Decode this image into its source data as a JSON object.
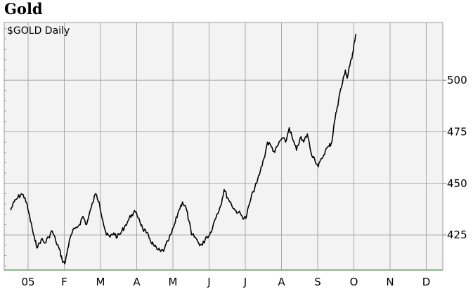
{
  "chart_data": {
    "type": "line",
    "title": "Gold",
    "subtitle": "$GOLD Daily",
    "xlabel": "",
    "ylabel": "",
    "ylim": [
      408,
      528
    ],
    "y_ticks": [
      425,
      450,
      475,
      500
    ],
    "y_axis_side": "right",
    "x_ticks": [
      "05",
      "F",
      "M",
      "A",
      "M",
      "J",
      "J",
      "A",
      "S",
      "O",
      "N",
      "D"
    ],
    "grid": true,
    "legend": "none",
    "series": [
      {
        "color": "#000000",
        "points": [
          [
            0.0,
            437
          ],
          [
            0.2,
            441
          ],
          [
            0.4,
            443
          ],
          [
            0.6,
            445
          ],
          [
            0.8,
            443
          ],
          [
            1.0,
            436
          ],
          [
            1.2,
            428
          ],
          [
            1.35,
            422
          ],
          [
            1.5,
            419
          ],
          [
            1.7,
            423
          ],
          [
            1.9,
            421
          ],
          [
            2.1,
            424
          ],
          [
            2.3,
            427
          ],
          [
            2.5,
            422
          ],
          [
            2.7,
            418
          ],
          [
            2.85,
            413
          ],
          [
            3.0,
            411
          ],
          [
            3.15,
            418
          ],
          [
            3.35,
            425
          ],
          [
            3.55,
            428
          ],
          [
            3.8,
            430
          ],
          [
            4.0,
            434
          ],
          [
            4.2,
            430
          ],
          [
            4.45,
            438
          ],
          [
            4.7,
            445
          ],
          [
            4.9,
            441
          ],
          [
            5.1,
            432
          ],
          [
            5.3,
            425
          ],
          [
            5.5,
            424
          ],
          [
            5.7,
            426
          ],
          [
            5.9,
            424
          ],
          [
            6.1,
            426
          ],
          [
            6.3,
            429
          ],
          [
            6.5,
            432
          ],
          [
            6.7,
            435
          ],
          [
            6.9,
            436
          ],
          [
            7.1,
            433
          ],
          [
            7.3,
            428
          ],
          [
            7.5,
            426
          ],
          [
            7.7,
            423
          ],
          [
            7.9,
            420
          ],
          [
            8.1,
            418
          ],
          [
            8.3,
            417
          ],
          [
            8.5,
            418
          ],
          [
            8.7,
            422
          ],
          [
            8.9,
            426
          ],
          [
            9.1,
            431
          ],
          [
            9.3,
            437
          ],
          [
            9.5,
            441
          ],
          [
            9.7,
            438
          ],
          [
            9.85,
            432
          ],
          [
            10.0,
            425
          ],
          [
            10.2,
            424
          ],
          [
            10.4,
            421
          ],
          [
            10.6,
            420
          ],
          [
            10.8,
            424
          ],
          [
            11.0,
            425
          ],
          [
            11.2,
            430
          ],
          [
            11.4,
            435
          ],
          [
            11.6,
            439
          ],
          [
            11.8,
            447
          ],
          [
            12.0,
            443
          ],
          [
            12.2,
            440
          ],
          [
            12.4,
            437
          ],
          [
            12.6,
            436
          ],
          [
            12.8,
            434
          ],
          [
            13.0,
            433
          ],
          [
            13.2,
            440
          ],
          [
            13.4,
            446
          ],
          [
            13.6,
            450
          ],
          [
            13.8,
            456
          ],
          [
            14.0,
            462
          ],
          [
            14.2,
            470
          ],
          [
            14.4,
            468
          ],
          [
            14.6,
            465
          ],
          [
            14.8,
            469
          ],
          [
            15.0,
            472
          ],
          [
            15.2,
            470
          ],
          [
            15.4,
            477
          ],
          [
            15.6,
            471
          ],
          [
            15.8,
            466
          ],
          [
            16.0,
            472
          ],
          [
            16.2,
            470
          ],
          [
            16.4,
            474
          ],
          [
            16.6,
            465
          ],
          [
            16.8,
            462
          ],
          [
            17.0,
            458
          ],
          [
            17.2,
            462
          ],
          [
            17.4,
            466
          ],
          [
            17.6,
            468
          ],
          [
            17.75,
            470
          ],
          [
            17.9,
            480
          ],
          [
            18.05,
            487
          ],
          [
            18.2,
            494
          ],
          [
            18.35,
            499
          ],
          [
            18.5,
            505
          ],
          [
            18.6,
            501
          ],
          [
            18.75,
            507
          ],
          [
            18.9,
            513
          ],
          [
            19.0,
            519
          ],
          [
            19.1,
            522
          ]
        ]
      }
    ]
  }
}
